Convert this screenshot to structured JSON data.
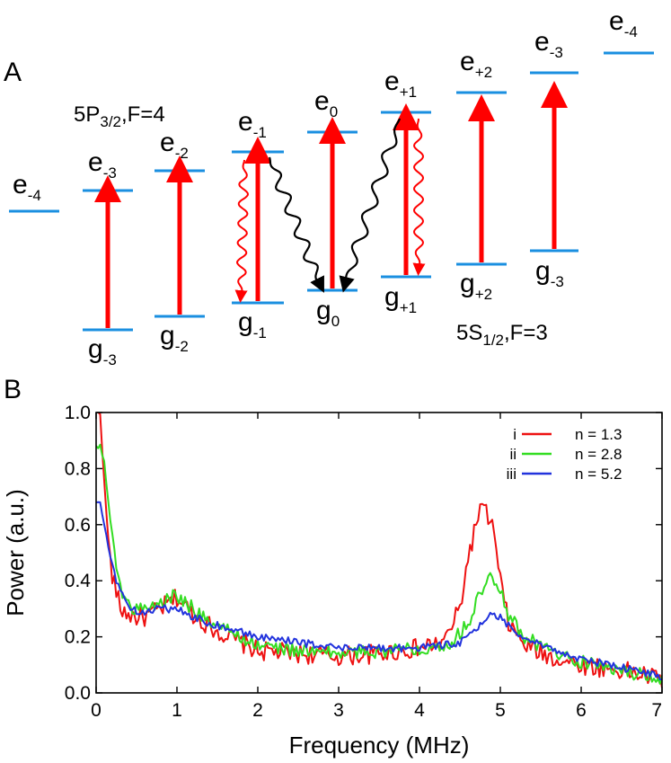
{
  "panel_a": {
    "panel_label": "A",
    "excited_manifold": {
      "main": "5P",
      "sub": "3/2",
      "rest": ",F=4"
    },
    "ground_manifold": {
      "main": "5S",
      "sub": "1/2",
      "rest": ",F=3"
    },
    "excited_levels": [
      {
        "id": "e_left_m4",
        "base": "e",
        "sub": "-4"
      },
      {
        "id": "e_m3",
        "base": "e",
        "sub": "-3"
      },
      {
        "id": "e_m2",
        "base": "e",
        "sub": "-2"
      },
      {
        "id": "e_m1",
        "base": "e",
        "sub": "-1"
      },
      {
        "id": "e_0",
        "base": "e",
        "sub": "0"
      },
      {
        "id": "e_p1",
        "base": "e",
        "sub": "+1"
      },
      {
        "id": "e_p2",
        "base": "e",
        "sub": "+2"
      },
      {
        "id": "e_right_m3",
        "base": "e",
        "sub": "-3"
      },
      {
        "id": "e_right_m4",
        "base": "e",
        "sub": "-4"
      }
    ],
    "ground_levels": [
      {
        "id": "g_m3",
        "base": "g",
        "sub": "-3"
      },
      {
        "id": "g_m2",
        "base": "g",
        "sub": "-2"
      },
      {
        "id": "g_m1",
        "base": "g",
        "sub": "-1"
      },
      {
        "id": "g_0",
        "base": "g",
        "sub": "0"
      },
      {
        "id": "g_p1",
        "base": "g",
        "sub": "+1"
      },
      {
        "id": "g_p2",
        "base": "g",
        "sub": "+2"
      },
      {
        "id": "g_right_m3",
        "base": "g",
        "sub": "-3"
      }
    ],
    "colors": {
      "level": "#1a8fe0",
      "pump": "#ff0000",
      "decay": "#000000"
    }
  },
  "panel_b": {
    "panel_label": "B",
    "chart_data": {
      "type": "line",
      "xlabel": "Frequency (MHz)",
      "ylabel": "Power (a.u.)",
      "xlim": [
        0,
        7
      ],
      "ylim": [
        0,
        1.0
      ],
      "xticks": [
        "0",
        "1",
        "2",
        "3",
        "4",
        "5",
        "6",
        "7"
      ],
      "yticks": [
        "0.0",
        "0.2",
        "0.4",
        "0.6",
        "0.8",
        "1.0"
      ],
      "legend_position": "top-right",
      "series": [
        {
          "id": "i",
          "roman": "i",
          "name": "n = 1.3",
          "color": "#ee1111",
          "x": [
            0.0,
            0.05,
            0.1,
            0.15,
            0.2,
            0.3,
            0.4,
            0.5,
            0.6,
            0.8,
            1.0,
            1.2,
            1.5,
            2.0,
            2.5,
            3.0,
            3.5,
            4.0,
            4.3,
            4.5,
            4.6,
            4.7,
            4.75,
            4.8,
            4.9,
            5.0,
            5.1,
            5.3,
            5.6,
            6.0,
            6.5,
            7.0
          ],
          "y": [
            1.0,
            1.0,
            0.75,
            0.55,
            0.42,
            0.3,
            0.28,
            0.27,
            0.27,
            0.3,
            0.34,
            0.28,
            0.22,
            0.15,
            0.14,
            0.13,
            0.14,
            0.16,
            0.18,
            0.3,
            0.48,
            0.6,
            0.66,
            0.65,
            0.6,
            0.4,
            0.25,
            0.17,
            0.13,
            0.1,
            0.08,
            0.05
          ],
          "noise": 0.035
        },
        {
          "id": "ii",
          "roman": "ii",
          "name": "n = 2.8",
          "color": "#33dd22",
          "x": [
            0.0,
            0.05,
            0.1,
            0.2,
            0.3,
            0.4,
            0.5,
            0.6,
            0.8,
            1.0,
            1.2,
            1.5,
            2.0,
            2.5,
            3.0,
            3.5,
            4.0,
            4.4,
            4.6,
            4.7,
            4.8,
            4.9,
            5.0,
            5.1,
            5.3,
            5.6,
            6.0,
            6.5,
            7.0
          ],
          "y": [
            0.88,
            0.88,
            0.82,
            0.55,
            0.38,
            0.31,
            0.3,
            0.3,
            0.32,
            0.35,
            0.3,
            0.24,
            0.17,
            0.15,
            0.14,
            0.15,
            0.16,
            0.18,
            0.25,
            0.32,
            0.38,
            0.42,
            0.38,
            0.28,
            0.2,
            0.15,
            0.11,
            0.08,
            0.05
          ],
          "noise": 0.025
        },
        {
          "id": "iii",
          "roman": "iii",
          "name": "n = 5.2",
          "color": "#2233dd",
          "x": [
            0.0,
            0.05,
            0.1,
            0.2,
            0.3,
            0.4,
            0.5,
            0.6,
            0.8,
            1.0,
            1.2,
            1.5,
            2.0,
            2.5,
            3.0,
            3.5,
            4.0,
            4.5,
            4.7,
            4.8,
            4.9,
            5.0,
            5.1,
            5.3,
            5.6,
            6.0,
            6.5,
            7.0
          ],
          "y": [
            0.68,
            0.68,
            0.6,
            0.45,
            0.36,
            0.3,
            0.29,
            0.29,
            0.3,
            0.3,
            0.27,
            0.24,
            0.2,
            0.18,
            0.16,
            0.16,
            0.16,
            0.18,
            0.22,
            0.26,
            0.28,
            0.27,
            0.24,
            0.2,
            0.16,
            0.12,
            0.09,
            0.06
          ],
          "noise": 0.014
        }
      ]
    }
  }
}
